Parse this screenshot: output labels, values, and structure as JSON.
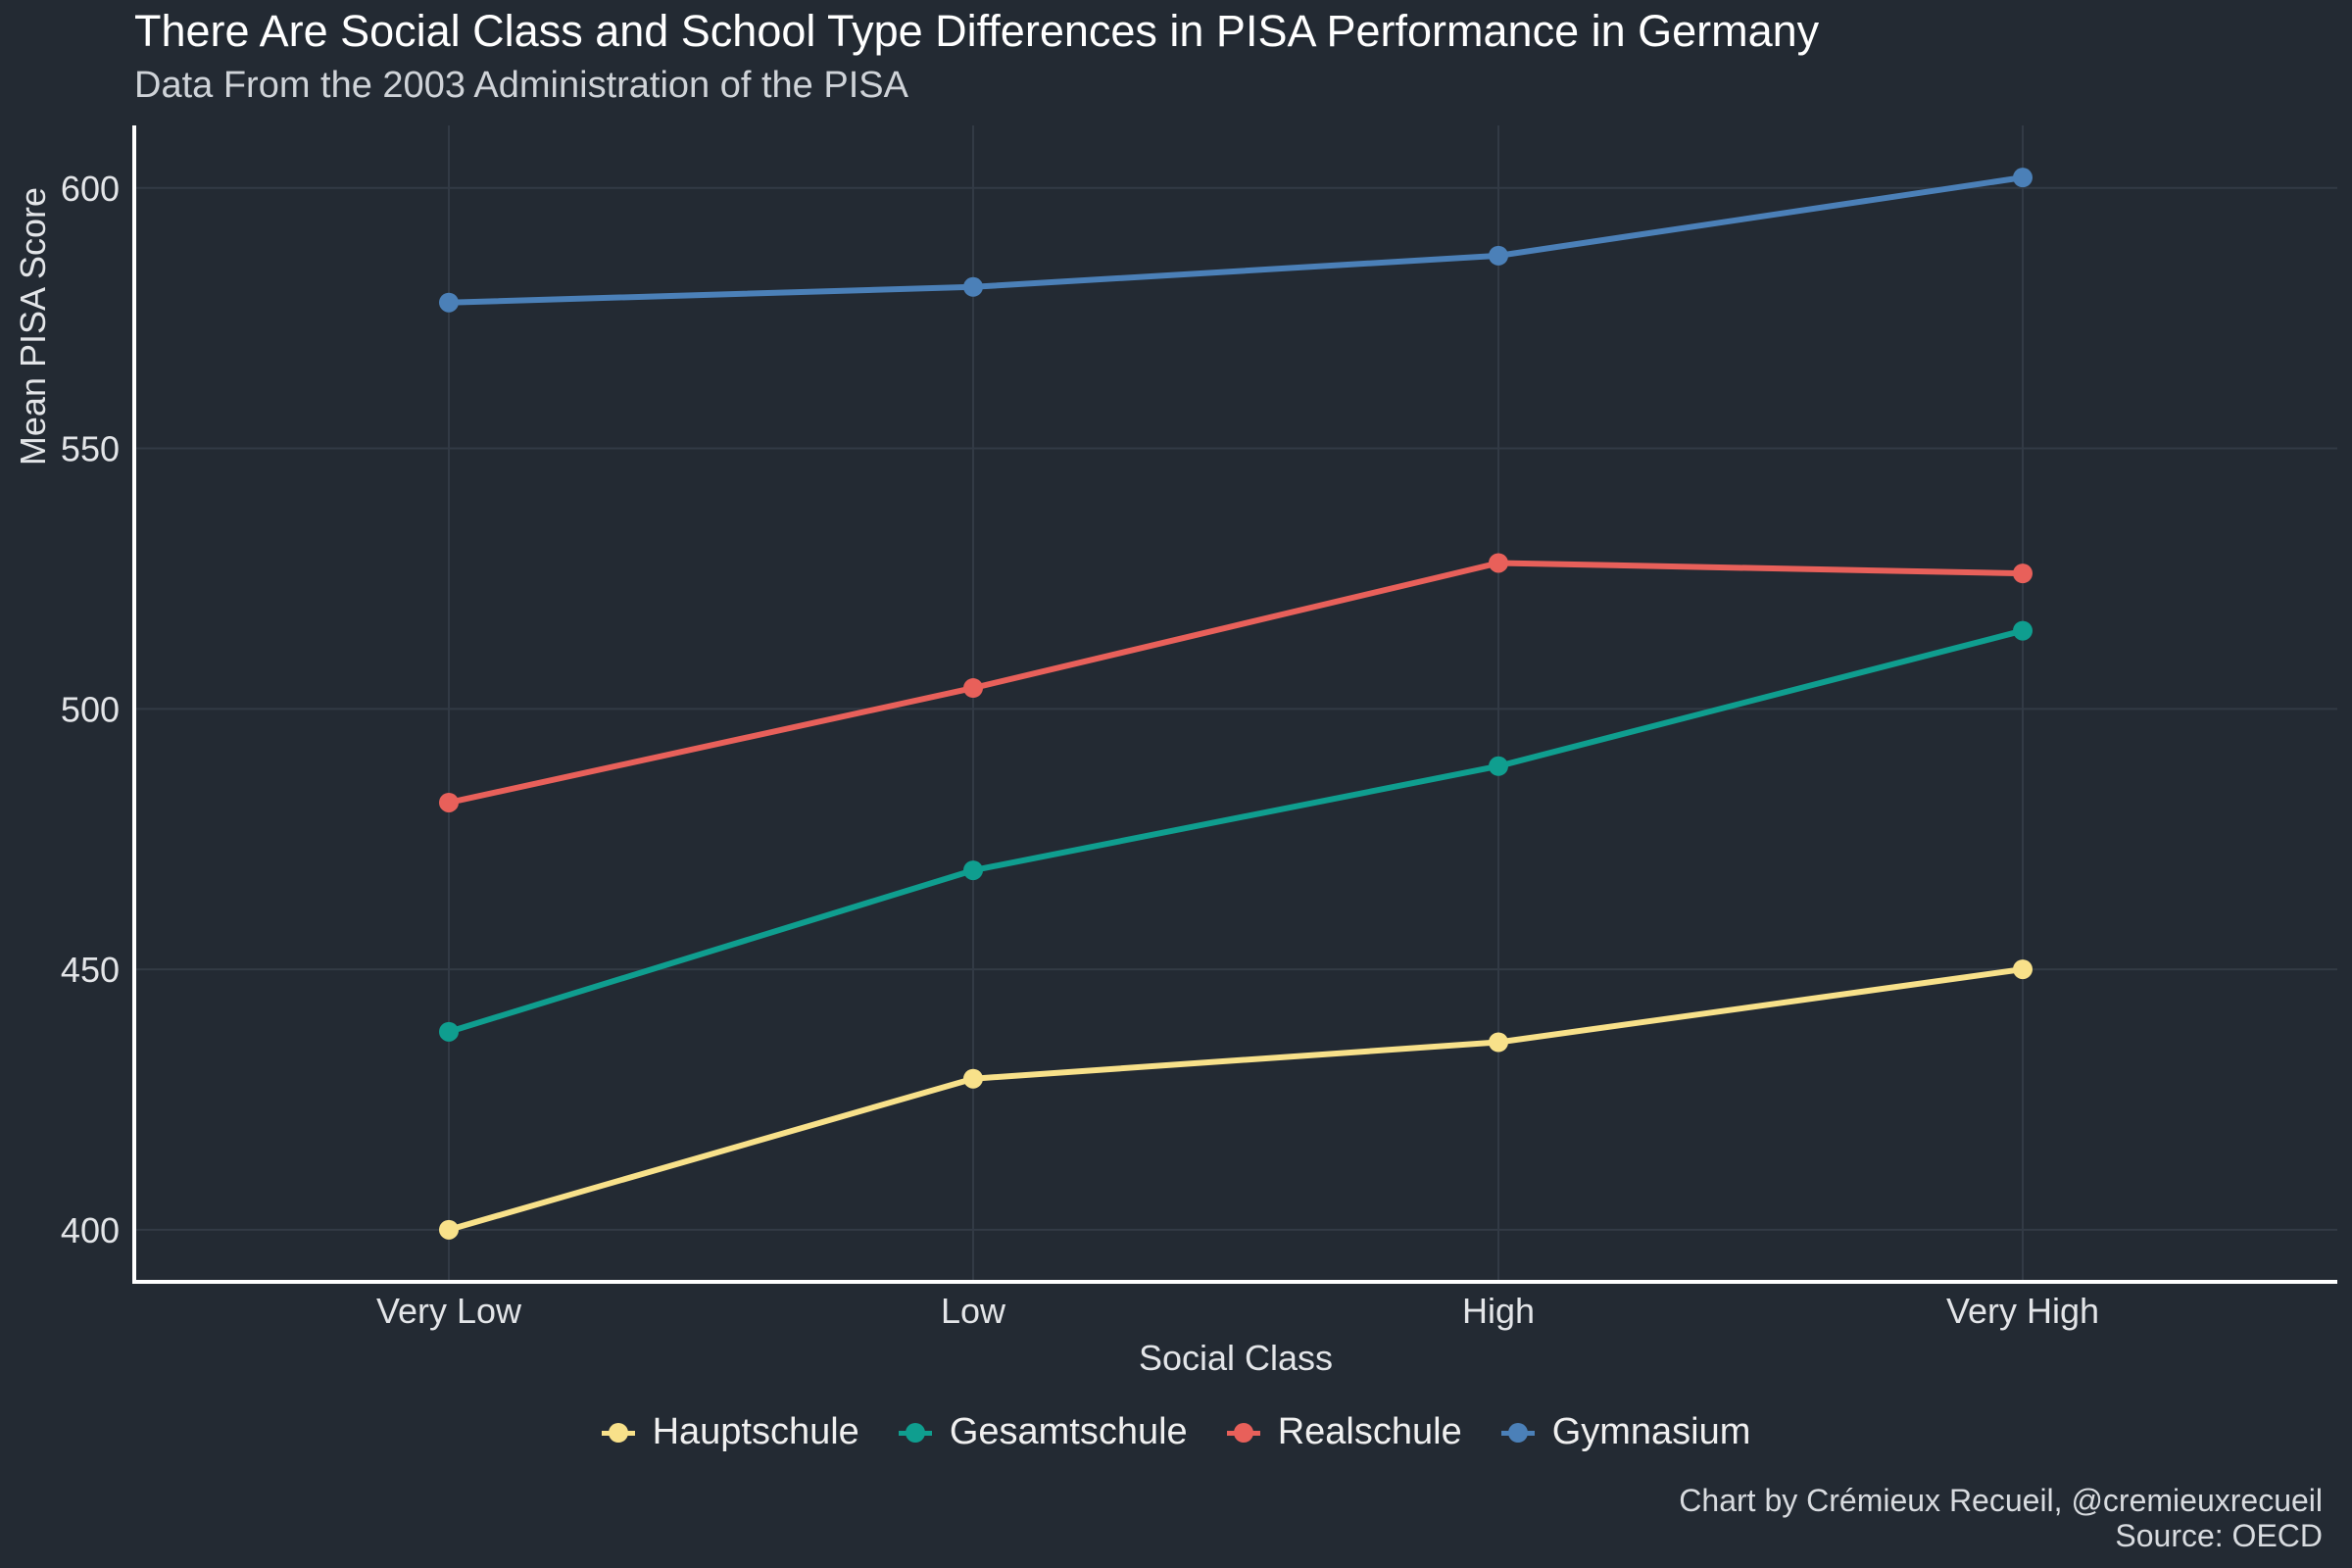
{
  "chart_data": {
    "type": "line",
    "title": "There Are Social Class and School Type Differences in PISA Performance in Germany",
    "subtitle": "Data From the 2003 Administration of the PISA",
    "xlabel": "Social Class",
    "ylabel": "Mean PISA Score",
    "categories": [
      "Very Low",
      "Low",
      "High",
      "Very High"
    ],
    "ylim": [
      390,
      612
    ],
    "yticks": [
      400,
      450,
      500,
      550,
      600
    ],
    "grid": true,
    "legend_position": "bottom",
    "series": [
      {
        "name": "Hauptschule",
        "color": "#f8e18a",
        "values": [
          400,
          429,
          436,
          450
        ]
      },
      {
        "name": "Gesamtschule",
        "color": "#0f9e8f",
        "values": [
          438,
          469,
          489,
          515
        ]
      },
      {
        "name": "Realschule",
        "color": "#e8605a",
        "values": [
          482,
          504,
          528,
          526
        ]
      },
      {
        "name": "Gymnasium",
        "color": "#4b80b8",
        "values": [
          578,
          581,
          587,
          602
        ]
      }
    ]
  },
  "caption": {
    "line1": "Chart by Crémieux Recueil, @cremieuxrecueil",
    "line2": "Source: OECD"
  }
}
